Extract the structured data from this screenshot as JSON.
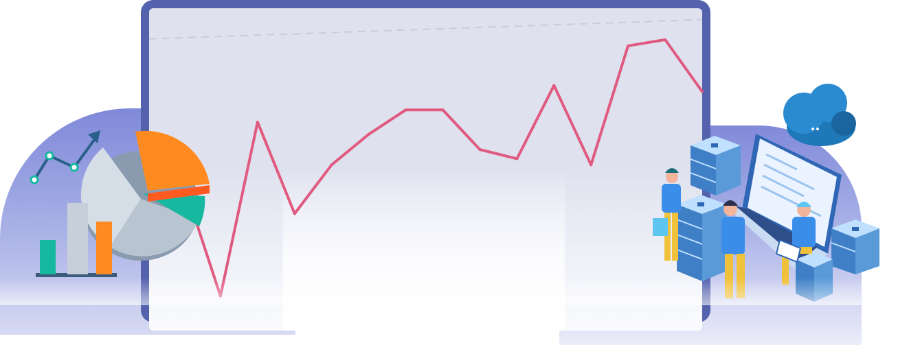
{
  "chart_data": {
    "type": "line",
    "series": [
      {
        "values": [
          40,
          3,
          60,
          30,
          46,
          56,
          64,
          64,
          51,
          48,
          72,
          46,
          85,
          87,
          70
        ]
      }
    ],
    "ylim": [
      0,
      100
    ],
    "reference_line": 94,
    "line_color": "#e05a80",
    "grid": false
  },
  "colors": {
    "monitor_frame": "#5462ad",
    "screen": "#dfe1ef",
    "blob": "#8f98dd",
    "accent_orange": "#ff8a1f",
    "accent_teal": "#17b8a0"
  },
  "icons": {
    "left": [
      "pie-chart-icon",
      "bar-chart-icon",
      "trend-line-icon"
    ],
    "right": [
      "cloud-icon",
      "server-stack-icon",
      "laptop-icon",
      "people-illustration"
    ]
  }
}
